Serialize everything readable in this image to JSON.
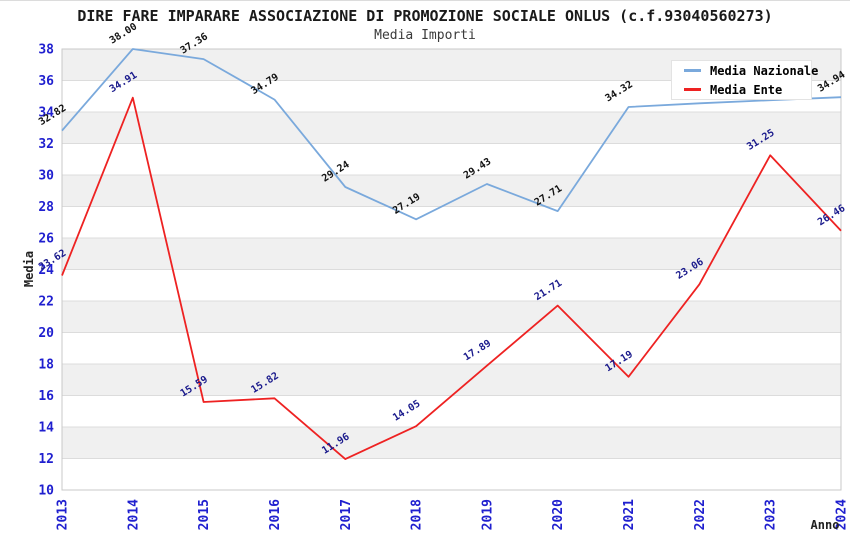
{
  "header": {
    "title": "DIRE FARE IMPARARE ASSOCIAZIONE DI PROMOZIONE SOCIALE ONLUS (c.f.93040560273)",
    "subtitle": "Media Importi"
  },
  "legend": {
    "items": [
      {
        "label": "Media Nazionale",
        "color": "#7aa9dc"
      },
      {
        "label": "Media Ente",
        "color": "#ee2222"
      }
    ]
  },
  "chart_data": {
    "type": "line",
    "title": "Media Importi",
    "xlabel": "Anno",
    "ylabel": "Media",
    "categories": [
      "2013",
      "2014",
      "2015",
      "2016",
      "2017",
      "2018",
      "2019",
      "2020",
      "2021",
      "2022",
      "2023",
      "2024"
    ],
    "series": [
      {
        "name": "Media Nazionale",
        "color": "#7aa9dc",
        "label_color": "#111111",
        "values": [
          32.82,
          38.0,
          37.36,
          34.79,
          29.24,
          27.19,
          29.43,
          27.71,
          34.32,
          34.55,
          34.75,
          34.94
        ],
        "labels": [
          "32.82",
          "38.00",
          "37.36",
          "34.79",
          "29.24",
          "27.19",
          "29.43",
          "27.71",
          "34.32",
          null,
          null,
          "34.94"
        ]
      },
      {
        "name": "Media Ente",
        "color": "#ee2222",
        "label_color": "#1a1a8c",
        "values": [
          23.62,
          34.91,
          15.59,
          15.82,
          11.96,
          14.05,
          17.89,
          21.71,
          17.19,
          23.06,
          31.25,
          26.46
        ],
        "labels": [
          "23.62",
          "34.91",
          "15.59",
          "15.82",
          "11.96",
          "14.05",
          "17.89",
          "21.71",
          "17.19",
          "23.06",
          "31.25",
          "26.46"
        ]
      }
    ],
    "ylim": [
      10,
      38
    ],
    "yticks": [
      10,
      12,
      14,
      16,
      18,
      20,
      22,
      24,
      26,
      28,
      30,
      32,
      34,
      36,
      38
    ],
    "grid": true,
    "legend_position": "top-right",
    "band_color": "#f0f0f0",
    "grid_color": "#dcdcdc",
    "frame_color": "#c9c9c9",
    "tick_label_color": "#1f1fcf"
  }
}
